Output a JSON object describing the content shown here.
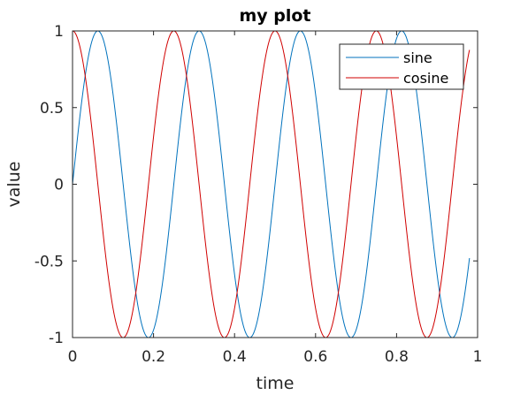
{
  "chart_data": {
    "type": "line",
    "title": "my plot",
    "xlabel": "time",
    "ylabel": "value",
    "xlim": [
      0,
      1
    ],
    "ylim": [
      -1,
      1
    ],
    "xticks": [
      "0",
      "0.2",
      "0.4",
      "0.6",
      "0.8",
      "1"
    ],
    "xtick_values": [
      0,
      0.2,
      0.4,
      0.6,
      0.8,
      1
    ],
    "yticks": [
      "-1",
      "-0.5",
      "0",
      "0.5",
      "1"
    ],
    "ytick_values": [
      -1,
      -0.5,
      0,
      0.5,
      1
    ],
    "grid": false,
    "legend_position": "top-right",
    "x_range": [
      0,
      0.98
    ],
    "frequency_hz": 4,
    "series": [
      {
        "name": "sine",
        "function": "sin",
        "color": "#0072BD"
      },
      {
        "name": "cosine",
        "function": "cos",
        "color": "#D00000"
      }
    ]
  }
}
